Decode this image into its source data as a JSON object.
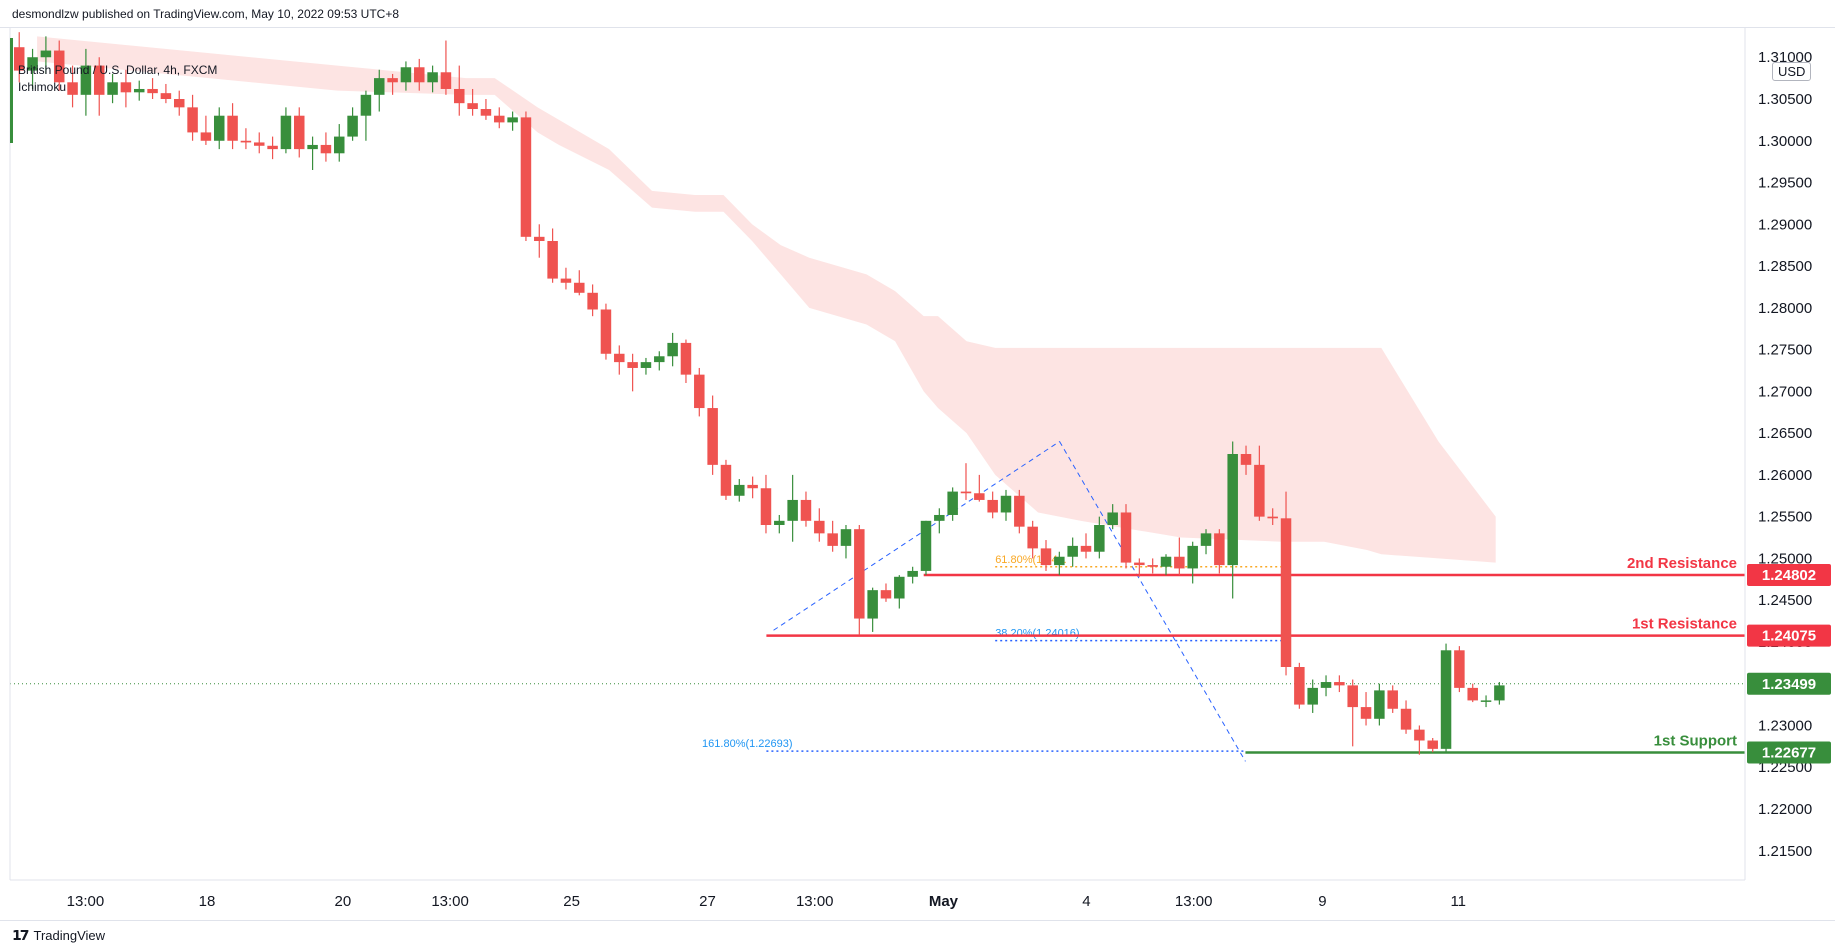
{
  "header": {
    "publisher": "desmondlzw published on TradingView.com, May 10, 2022 09:53 UTC+8"
  },
  "legend": {
    "symbol": "British Pound / U.S. Dollar, 4h, FXCM",
    "indicator": "Ichimoku"
  },
  "currency_badge": "USD",
  "footer": {
    "logo_icon": "tradingview-logo-icon",
    "brand": "TradingView"
  },
  "colors": {
    "up": "#388e3c",
    "down": "#ef5350",
    "cloud": "#fde4e3",
    "resistance": "#f23645",
    "support": "#388e3c",
    "fib": "#2962ff",
    "fib_label": "#2196f3",
    "fib_618": "#f9a825"
  },
  "chart_data": {
    "type": "candlestick",
    "symbol": "GBPUSD",
    "timeframe": "4h",
    "ylim": [
      1.2115,
      1.3135
    ],
    "x_labels": [
      "13:00",
      "18",
      "20",
      "13:00",
      "25",
      "27",
      "13:00",
      "May",
      "4",
      "13:00",
      "9",
      "11"
    ],
    "x_label_index": [
      3,
      20,
      39,
      54,
      71,
      90,
      105,
      123,
      143,
      158,
      176,
      195
    ],
    "y_ticks": [
      "1.21500",
      "1.22000",
      "1.22500",
      "1.23000",
      "1.23500",
      "1.24000",
      "1.24500",
      "1.25000",
      "1.25500",
      "1.26000",
      "1.26500",
      "1.27000",
      "1.27500",
      "1.28000",
      "1.28500",
      "1.29000",
      "1.29500",
      "1.30000",
      "1.30500",
      "1.31000"
    ],
    "last_price": 1.23499,
    "candles": [
      {
        "o": 1.3112,
        "h": 1.313,
        "l": 1.307,
        "c": 1.3084
      },
      {
        "o": 1.3084,
        "h": 1.311,
        "l": 1.3062,
        "c": 1.31
      },
      {
        "o": 1.31,
        "h": 1.3125,
        "l": 1.308,
        "c": 1.3108
      },
      {
        "o": 1.3108,
        "h": 1.312,
        "l": 1.306,
        "c": 1.307
      },
      {
        "o": 1.307,
        "h": 1.309,
        "l": 1.304,
        "c": 1.3055
      },
      {
        "o": 1.3055,
        "h": 1.311,
        "l": 1.303,
        "c": 1.309
      },
      {
        "o": 1.309,
        "h": 1.31,
        "l": 1.303,
        "c": 1.3055
      },
      {
        "o": 1.3055,
        "h": 1.308,
        "l": 1.3045,
        "c": 1.307
      },
      {
        "o": 1.307,
        "h": 1.3085,
        "l": 1.304,
        "c": 1.3058
      },
      {
        "o": 1.3058,
        "h": 1.3072,
        "l": 1.3048,
        "c": 1.3062
      },
      {
        "o": 1.3062,
        "h": 1.3075,
        "l": 1.305,
        "c": 1.3057
      },
      {
        "o": 1.3057,
        "h": 1.3068,
        "l": 1.3045,
        "c": 1.305
      },
      {
        "o": 1.305,
        "h": 1.306,
        "l": 1.303,
        "c": 1.304
      },
      {
        "o": 1.304,
        "h": 1.3055,
        "l": 1.3,
        "c": 1.301
      },
      {
        "o": 1.301,
        "h": 1.303,
        "l": 1.2995,
        "c": 1.3
      },
      {
        "o": 1.3,
        "h": 1.304,
        "l": 1.299,
        "c": 1.303
      },
      {
        "o": 1.303,
        "h": 1.3045,
        "l": 1.299,
        "c": 1.3
      },
      {
        "o": 1.3,
        "h": 1.3015,
        "l": 1.299,
        "c": 1.2998
      },
      {
        "o": 1.2998,
        "h": 1.301,
        "l": 1.2985,
        "c": 1.2994
      },
      {
        "o": 1.2994,
        "h": 1.3005,
        "l": 1.2978,
        "c": 1.299
      },
      {
        "o": 1.299,
        "h": 1.304,
        "l": 1.2985,
        "c": 1.303
      },
      {
        "o": 1.303,
        "h": 1.304,
        "l": 1.298,
        "c": 1.299
      },
      {
        "o": 1.299,
        "h": 1.3005,
        "l": 1.2965,
        "c": 1.2995
      },
      {
        "o": 1.2995,
        "h": 1.301,
        "l": 1.2975,
        "c": 1.2985
      },
      {
        "o": 1.2985,
        "h": 1.302,
        "l": 1.2975,
        "c": 1.3005
      },
      {
        "o": 1.3005,
        "h": 1.304,
        "l": 1.3,
        "c": 1.303
      },
      {
        "o": 1.303,
        "h": 1.306,
        "l": 1.3,
        "c": 1.3055
      },
      {
        "o": 1.3055,
        "h": 1.3085,
        "l": 1.3035,
        "c": 1.3075
      },
      {
        "o": 1.3075,
        "h": 1.308,
        "l": 1.3055,
        "c": 1.307
      },
      {
        "o": 1.307,
        "h": 1.3095,
        "l": 1.306,
        "c": 1.3088
      },
      {
        "o": 1.3088,
        "h": 1.3098,
        "l": 1.306,
        "c": 1.307
      },
      {
        "o": 1.307,
        "h": 1.309,
        "l": 1.3058,
        "c": 1.3082
      },
      {
        "o": 1.3082,
        "h": 1.312,
        "l": 1.3055,
        "c": 1.3062
      },
      {
        "o": 1.3062,
        "h": 1.309,
        "l": 1.303,
        "c": 1.3045
      },
      {
        "o": 1.3045,
        "h": 1.3062,
        "l": 1.303,
        "c": 1.3038
      },
      {
        "o": 1.3038,
        "h": 1.305,
        "l": 1.3025,
        "c": 1.303
      },
      {
        "o": 1.303,
        "h": 1.304,
        "l": 1.3015,
        "c": 1.3022
      },
      {
        "o": 1.3022,
        "h": 1.3035,
        "l": 1.3012,
        "c": 1.3028
      },
      {
        "o": 1.3028,
        "h": 1.3035,
        "l": 1.288,
        "c": 1.2885
      },
      {
        "o": 1.2885,
        "h": 1.29,
        "l": 1.286,
        "c": 1.288
      },
      {
        "o": 1.288,
        "h": 1.2895,
        "l": 1.283,
        "c": 1.2835
      },
      {
        "o": 1.2835,
        "h": 1.2848,
        "l": 1.2822,
        "c": 1.283
      },
      {
        "o": 1.283,
        "h": 1.2845,
        "l": 1.2815,
        "c": 1.2818
      },
      {
        "o": 1.2818,
        "h": 1.2828,
        "l": 1.279,
        "c": 1.2798
      },
      {
        "o": 1.2798,
        "h": 1.2805,
        "l": 1.2738,
        "c": 1.2745
      },
      {
        "o": 1.2745,
        "h": 1.2755,
        "l": 1.272,
        "c": 1.2735
      },
      {
        "o": 1.2735,
        "h": 1.2745,
        "l": 1.27,
        "c": 1.2728
      },
      {
        "o": 1.2728,
        "h": 1.274,
        "l": 1.272,
        "c": 1.2735
      },
      {
        "o": 1.2735,
        "h": 1.2748,
        "l": 1.2725,
        "c": 1.2742
      },
      {
        "o": 1.2742,
        "h": 1.277,
        "l": 1.273,
        "c": 1.2758
      },
      {
        "o": 1.2758,
        "h": 1.2762,
        "l": 1.271,
        "c": 1.272
      },
      {
        "o": 1.272,
        "h": 1.2728,
        "l": 1.267,
        "c": 1.268
      },
      {
        "o": 1.268,
        "h": 1.2695,
        "l": 1.26,
        "c": 1.2612
      },
      {
        "o": 1.2612,
        "h": 1.2618,
        "l": 1.257,
        "c": 1.2575
      },
      {
        "o": 1.2575,
        "h": 1.2595,
        "l": 1.2568,
        "c": 1.2588
      },
      {
        "o": 1.2588,
        "h": 1.2598,
        "l": 1.2572,
        "c": 1.2584
      },
      {
        "o": 1.2584,
        "h": 1.26,
        "l": 1.253,
        "c": 1.254
      },
      {
        "o": 1.254,
        "h": 1.2552,
        "l": 1.253,
        "c": 1.2545
      },
      {
        "o": 1.2545,
        "h": 1.26,
        "l": 1.252,
        "c": 1.257
      },
      {
        "o": 1.257,
        "h": 1.258,
        "l": 1.2538,
        "c": 1.2545
      },
      {
        "o": 1.2545,
        "h": 1.256,
        "l": 1.252,
        "c": 1.253
      },
      {
        "o": 1.253,
        "h": 1.2545,
        "l": 1.2508,
        "c": 1.2515
      },
      {
        "o": 1.2515,
        "h": 1.254,
        "l": 1.25,
        "c": 1.2535
      },
      {
        "o": 1.2535,
        "h": 1.254,
        "l": 1.2408,
        "c": 1.2428
      },
      {
        "o": 1.2428,
        "h": 1.2465,
        "l": 1.2412,
        "c": 1.2462
      },
      {
        "o": 1.2462,
        "h": 1.247,
        "l": 1.2448,
        "c": 1.2452
      },
      {
        "o": 1.2452,
        "h": 1.248,
        "l": 1.244,
        "c": 1.2478
      },
      {
        "o": 1.2478,
        "h": 1.249,
        "l": 1.247,
        "c": 1.2485
      },
      {
        "o": 1.2485,
        "h": 1.2545,
        "l": 1.248,
        "c": 1.2545
      },
      {
        "o": 1.2545,
        "h": 1.256,
        "l": 1.253,
        "c": 1.2552
      },
      {
        "o": 1.2552,
        "h": 1.2585,
        "l": 1.2545,
        "c": 1.258
      },
      {
        "o": 1.258,
        "h": 1.2614,
        "l": 1.257,
        "c": 1.2578
      },
      {
        "o": 1.2578,
        "h": 1.26,
        "l": 1.2568,
        "c": 1.257
      },
      {
        "o": 1.257,
        "h": 1.258,
        "l": 1.2548,
        "c": 1.2555
      },
      {
        "o": 1.2555,
        "h": 1.2582,
        "l": 1.2545,
        "c": 1.2575
      },
      {
        "o": 1.2575,
        "h": 1.2582,
        "l": 1.253,
        "c": 1.2538
      },
      {
        "o": 1.2538,
        "h": 1.2545,
        "l": 1.25,
        "c": 1.2512
      },
      {
        "o": 1.2512,
        "h": 1.2522,
        "l": 1.2485,
        "c": 1.2492
      },
      {
        "o": 1.2492,
        "h": 1.2508,
        "l": 1.248,
        "c": 1.2502
      },
      {
        "o": 1.2502,
        "h": 1.2525,
        "l": 1.249,
        "c": 1.2515
      },
      {
        "o": 1.2515,
        "h": 1.253,
        "l": 1.25,
        "c": 1.2508
      },
      {
        "o": 1.2508,
        "h": 1.255,
        "l": 1.25,
        "c": 1.254
      },
      {
        "o": 1.254,
        "h": 1.2565,
        "l": 1.2535,
        "c": 1.2555
      },
      {
        "o": 1.2555,
        "h": 1.2565,
        "l": 1.2488,
        "c": 1.2495
      },
      {
        "o": 1.2495,
        "h": 1.25,
        "l": 1.2478,
        "c": 1.2492
      },
      {
        "o": 1.2492,
        "h": 1.25,
        "l": 1.2482,
        "c": 1.249
      },
      {
        "o": 1.249,
        "h": 1.2505,
        "l": 1.248,
        "c": 1.2502
      },
      {
        "o": 1.2502,
        "h": 1.2525,
        "l": 1.248,
        "c": 1.2488
      },
      {
        "o": 1.2488,
        "h": 1.252,
        "l": 1.247,
        "c": 1.2515
      },
      {
        "o": 1.2515,
        "h": 1.2535,
        "l": 1.2505,
        "c": 1.253
      },
      {
        "o": 1.253,
        "h": 1.2535,
        "l": 1.2482,
        "c": 1.2492
      },
      {
        "o": 1.2492,
        "h": 1.264,
        "l": 1.2452,
        "c": 1.2625
      },
      {
        "o": 1.2625,
        "h": 1.2635,
        "l": 1.26,
        "c": 1.2612
      },
      {
        "o": 1.2612,
        "h": 1.2635,
        "l": 1.2545,
        "c": 1.255
      },
      {
        "o": 1.255,
        "h": 1.256,
        "l": 1.254,
        "c": 1.2548
      },
      {
        "o": 1.2548,
        "h": 1.258,
        "l": 1.236,
        "c": 1.237
      },
      {
        "o": 1.237,
        "h": 1.2375,
        "l": 1.232,
        "c": 1.2325
      },
      {
        "o": 1.2325,
        "h": 1.2355,
        "l": 1.2315,
        "c": 1.2345
      },
      {
        "o": 1.2345,
        "h": 1.236,
        "l": 1.2335,
        "c": 1.2352
      },
      {
        "o": 1.2352,
        "h": 1.236,
        "l": 1.234,
        "c": 1.2348
      },
      {
        "o": 1.2348,
        "h": 1.2355,
        "l": 1.2275,
        "c": 1.2322
      },
      {
        "o": 1.2322,
        "h": 1.234,
        "l": 1.23,
        "c": 1.2308
      },
      {
        "o": 1.2308,
        "h": 1.235,
        "l": 1.23,
        "c": 1.2342
      },
      {
        "o": 1.2342,
        "h": 1.2348,
        "l": 1.2315,
        "c": 1.232
      },
      {
        "o": 1.232,
        "h": 1.233,
        "l": 1.229,
        "c": 1.2295
      },
      {
        "o": 1.2295,
        "h": 1.23,
        "l": 1.2265,
        "c": 1.2282
      },
      {
        "o": 1.2282,
        "h": 1.2285,
        "l": 1.2268,
        "c": 1.2272
      },
      {
        "o": 1.2272,
        "h": 1.2398,
        "l": 1.2268,
        "c": 1.239
      },
      {
        "o": 1.239,
        "h": 1.2395,
        "l": 1.234,
        "c": 1.2345
      },
      {
        "o": 1.2345,
        "h": 1.235,
        "l": 1.2328,
        "c": 1.233
      },
      {
        "o": 1.233,
        "h": 1.2336,
        "l": 1.2322,
        "c": 1.233
      },
      {
        "o": 1.233,
        "h": 1.2352,
        "l": 1.2325,
        "c": 1.2348
      }
    ],
    "candle_x_index_start": 0,
    "candle_x_index_skip_after": 0,
    "cloud": {
      "x_index": [
        0,
        42,
        60,
        64,
        70,
        73,
        80,
        86,
        92,
        96,
        100,
        104,
        108,
        116,
        120,
        124,
        126,
        130,
        134,
        138,
        140,
        146,
        160,
        174,
        180,
        186,
        188,
        196,
        204
      ],
      "upper": [
        1.3125,
        1.309,
        1.3075,
        1.3075,
        1.304,
        1.3025,
        1.299,
        1.294,
        1.2935,
        1.2935,
        1.29,
        1.2875,
        1.286,
        1.284,
        1.282,
        1.279,
        1.279,
        1.276,
        1.2752,
        1.2752,
        1.2752,
        1.2752,
        1.2752,
        1.2752,
        1.2752,
        1.2752,
        1.2752,
        1.264,
        1.255
      ],
      "lower": [
        1.3095,
        1.306,
        1.3055,
        1.3055,
        1.301,
        1.2995,
        1.2965,
        1.292,
        1.2915,
        1.2915,
        1.288,
        1.284,
        1.28,
        1.278,
        1.276,
        1.27,
        1.268,
        1.265,
        1.26,
        1.257,
        1.2555,
        1.2545,
        1.2525,
        1.252,
        1.252,
        1.251,
        1.2505,
        1.25,
        1.2495
      ]
    },
    "levels": [
      {
        "name": "2nd Resistance",
        "price": 1.24802,
        "price_label": "1.24802",
        "from_index": 130,
        "color_key": "resistance"
      },
      {
        "name": "1st Resistance",
        "price": 1.24075,
        "price_label": "1.24075",
        "from_index": 108,
        "color_key": "resistance"
      },
      {
        "name": "1st Support",
        "price": 1.22677,
        "price_label": "1.22677",
        "from_index": 175,
        "color_key": "support"
      }
    ],
    "fib_labels": [
      {
        "text": "38.20%(1.24016)",
        "price": 1.24016,
        "from_index": 140,
        "to_index": 180,
        "label_index": 140
      },
      {
        "text": "161.80%(1.22693)",
        "price": 1.22693,
        "from_index": 108,
        "to_index": 175,
        "label_index": 99
      },
      {
        "text": "61.80%(1.24...",
        "price": 1.249,
        "from_index": 140,
        "to_index": 180,
        "label_index": 140
      }
    ],
    "fib_trendlines": [
      {
        "from_index": 109,
        "from_price": 1.2414,
        "to_index": 149,
        "to_price": 1.264
      },
      {
        "from_index": 149,
        "from_price": 1.264,
        "to_index": 175,
        "to_price": 1.2257
      }
    ]
  }
}
